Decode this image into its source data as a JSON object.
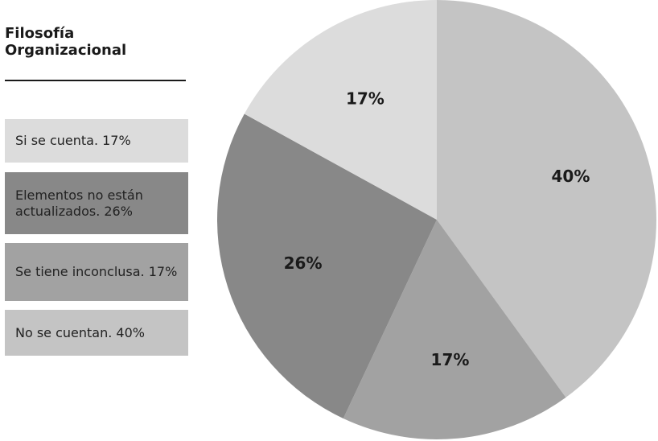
{
  "title": "Filosofía Organizacional",
  "legend": [
    {
      "label": "Si se cuenta. 17%",
      "color": "#dcdcdc"
    },
    {
      "label": "Elementos no están actualizados. 26%",
      "color": "#888888"
    },
    {
      "label": "Se tiene inconclusa. 17%",
      "color": "#a2a2a2"
    },
    {
      "label": "No se cuentan. 40%",
      "color": "#c4c4c4"
    }
  ],
  "chart_data": {
    "type": "pie",
    "title": "Filosofía Organizacional",
    "slices": [
      {
        "name": "No se cuentan.",
        "value": 40,
        "label": "40%",
        "color": "#c4c4c4"
      },
      {
        "name": "Se tiene inconclusa.",
        "value": 17,
        "label": "17%",
        "color": "#a2a2a2"
      },
      {
        "name": "Elementos no están actualizados.",
        "value": 26,
        "label": "26%",
        "color": "#888888"
      },
      {
        "name": "Si se cuenta.",
        "value": 17,
        "label": "17%",
        "color": "#dcdcdc"
      }
    ],
    "start_angle": "12 o'clock",
    "direction": "clockwise",
    "legend_position": "left"
  }
}
